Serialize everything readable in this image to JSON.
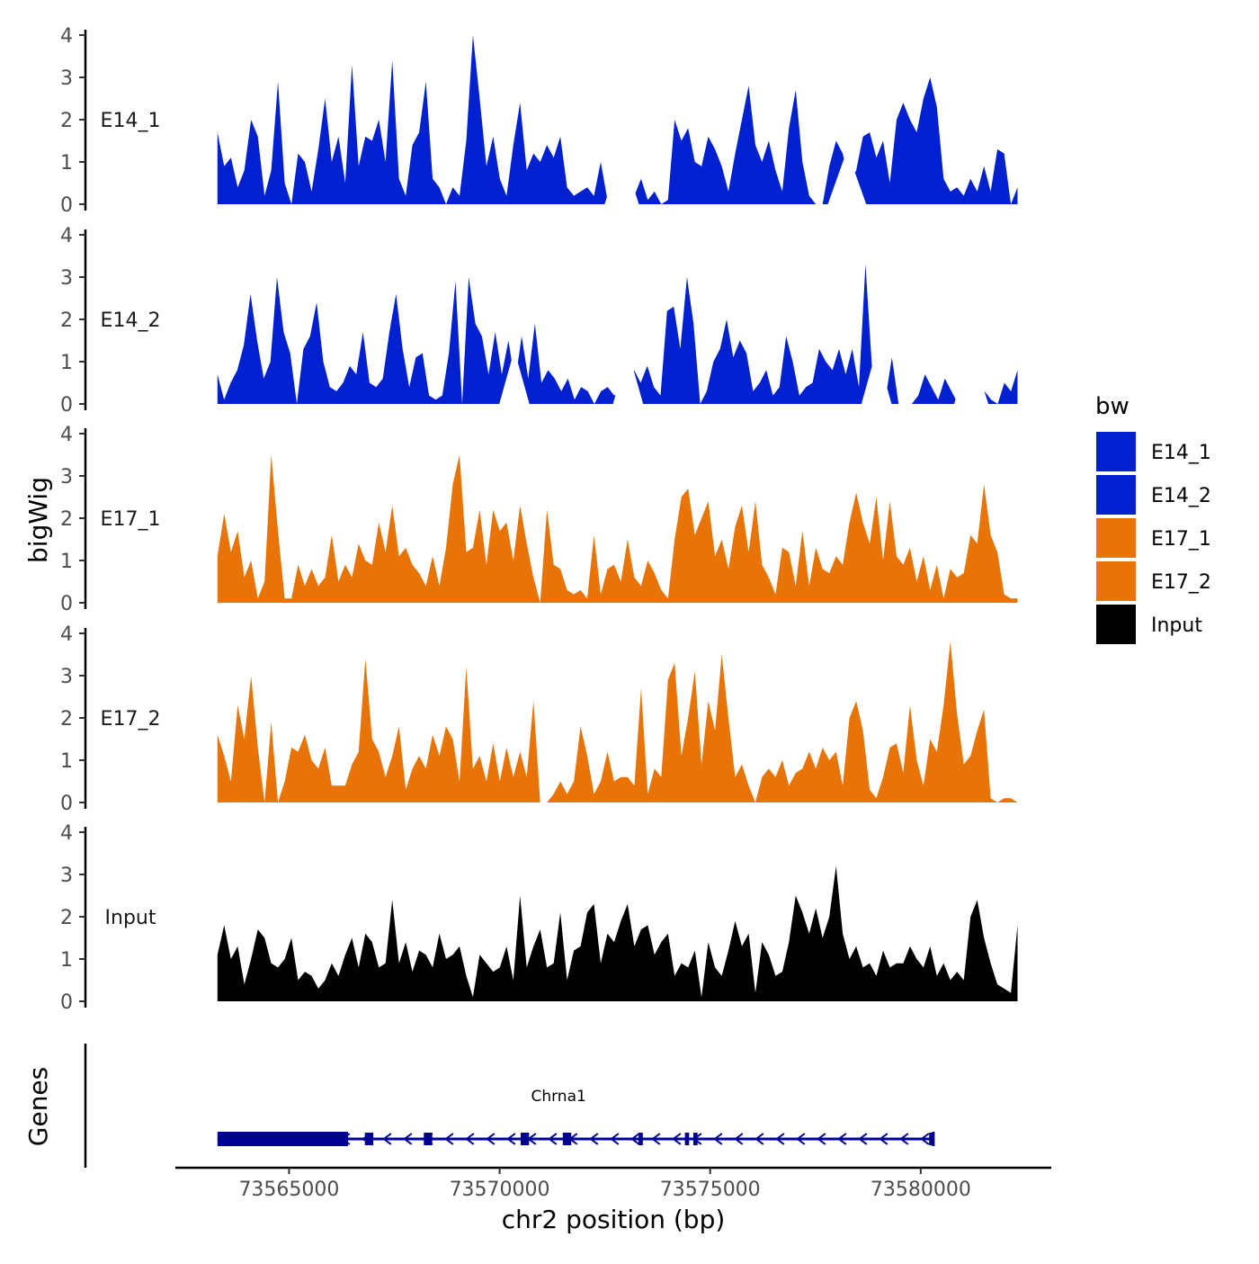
{
  "chart_data": {
    "type": "area",
    "ylabel": "bigWig",
    "xlabel": "chr2 position (bp)",
    "xlim": [
      73562300,
      73583100
    ],
    "ylim": [
      0,
      4
    ],
    "yticks": [
      0,
      1,
      2,
      3,
      4
    ],
    "xticks": [
      73565000,
      73570000,
      73575000,
      73580000
    ],
    "x_start": 73563300,
    "x_end": 73582300,
    "legend": {
      "title": "bw",
      "position": "right",
      "entries": [
        {
          "label": "E14_1",
          "color": "#0120d0"
        },
        {
          "label": "E14_2",
          "color": "#0120d0"
        },
        {
          "label": "E17_1",
          "color": "#e87408"
        },
        {
          "label": "E17_2",
          "color": "#e87408"
        },
        {
          "label": "Input",
          "color": "#000000"
        }
      ]
    },
    "tracks": [
      {
        "name": "E14_1",
        "color": "#0120d0",
        "values": [
          1.7,
          0.9,
          1.1,
          0.4,
          0.8,
          2.0,
          1.6,
          0.2,
          0.8,
          2.9,
          0.5,
          0.0,
          1.2,
          1.0,
          0.3,
          1.3,
          2.5,
          1.0,
          1.6,
          0.5,
          3.3,
          0.9,
          1.6,
          1.5,
          2.0,
          1.0,
          3.4,
          0.6,
          0.2,
          1.4,
          1.7,
          2.9,
          0.6,
          0.4,
          0.0,
          0.4,
          0.2,
          1.5,
          4.0,
          2.5,
          0.9,
          1.6,
          0.6,
          0.2,
          1.4,
          2.4,
          0.8,
          1.2,
          1.0,
          1.4,
          1.1,
          1.6,
          0.4,
          0.2,
          0.3,
          0.4,
          0.2,
          1.0,
          0.1,
          0.6,
          0.0,
          0.3,
          0.2,
          0.6,
          0.1,
          0.3,
          0.0,
          0.1,
          2.0,
          1.5,
          1.8,
          1.0,
          0.9,
          1.6,
          1.3,
          0.9,
          0.3,
          1.2,
          2.0,
          2.8,
          1.4,
          1.0,
          1.5,
          0.8,
          0.3,
          1.8,
          2.7,
          1.0,
          0.2,
          0.0,
          0.0,
          0.9,
          1.5,
          1.2,
          0.5,
          0.8,
          1.6,
          1.7,
          1.1,
          1.5,
          0.5,
          2.0,
          2.4,
          2.0,
          1.7,
          2.5,
          3.0,
          2.3,
          0.6,
          0.3,
          0.4,
          0.2,
          0.6,
          0.3,
          0.9,
          0.3,
          1.3,
          1.2,
          0.0,
          0.4
        ],
        "gaps": [
          [
            73572700,
            73573100
          ],
          [
            73578000,
            73578500
          ]
        ]
      },
      {
        "name": "E14_2",
        "color": "#0120d0",
        "values": [
          0.7,
          0.1,
          0.5,
          0.8,
          1.4,
          2.6,
          1.5,
          0.6,
          1.0,
          3.0,
          1.7,
          1.2,
          0.0,
          1.3,
          1.6,
          2.4,
          1.0,
          0.4,
          0.3,
          0.5,
          0.9,
          0.7,
          1.7,
          0.5,
          0.4,
          0.6,
          1.7,
          2.6,
          1.3,
          0.4,
          1.1,
          1.2,
          0.2,
          0.1,
          0.2,
          1.2,
          2.9,
          0.0,
          3.0,
          1.9,
          1.6,
          0.7,
          1.7,
          0.7,
          1.5,
          0.5,
          1.6,
          0.6,
          1.9,
          0.5,
          0.8,
          0.6,
          0.3,
          0.6,
          0.1,
          0.4,
          0.3,
          0.0,
          0.3,
          0.4,
          0.2,
          0.3,
          0.1,
          0.8,
          0.5,
          0.9,
          0.4,
          0.2,
          2.2,
          2.3,
          1.3,
          3.0,
          1.9,
          0.0,
          0.3,
          1.0,
          1.3,
          2.0,
          1.1,
          1.5,
          1.2,
          0.3,
          0.5,
          0.8,
          0.2,
          0.4,
          1.6,
          1.0,
          0.2,
          0.4,
          0.5,
          1.3,
          1.0,
          0.8,
          1.3,
          0.7,
          1.3,
          0.4,
          3.3,
          0.8,
          0.2,
          0.1,
          1.1,
          0.0,
          0.0,
          0.0,
          0.2,
          0.7,
          0.4,
          0.1,
          0.6,
          0.3,
          0.0,
          0.5,
          0.1,
          0.0,
          0.3,
          0.1,
          0.0,
          0.5,
          0.3,
          0.8
        ],
        "gaps": [
          [
            73570200,
            73570500
          ],
          [
            73572900,
            73573200
          ],
          [
            73578800,
            73579100
          ],
          [
            73581000,
            73581400
          ]
        ]
      },
      {
        "name": "E17_1",
        "color": "#e87408",
        "values": [
          1.1,
          2.1,
          1.2,
          1.7,
          0.6,
          1.0,
          0.1,
          0.5,
          3.5,
          1.7,
          0.1,
          0.1,
          0.9,
          0.4,
          0.8,
          0.4,
          0.6,
          1.6,
          0.5,
          0.9,
          0.6,
          1.4,
          1.0,
          0.9,
          1.9,
          1.2,
          2.3,
          1.1,
          1.3,
          0.9,
          0.7,
          0.4,
          1.1,
          0.4,
          1.3,
          2.8,
          3.5,
          1.2,
          1.3,
          2.2,
          0.9,
          2.2,
          1.7,
          1.9,
          1.0,
          2.3,
          1.4,
          0.6,
          0.0,
          2.2,
          0.9,
          0.8,
          0.3,
          0.2,
          0.3,
          0.1,
          1.6,
          0.2,
          0.8,
          0.9,
          0.5,
          1.5,
          0.6,
          0.4,
          1.0,
          0.7,
          0.3,
          0.1,
          1.5,
          2.5,
          2.7,
          1.6,
          2.0,
          2.4,
          1.1,
          1.5,
          0.8,
          1.8,
          2.3,
          1.2,
          2.4,
          0.9,
          0.6,
          0.2,
          1.3,
          1.2,
          0.4,
          1.7,
          0.4,
          1.3,
          0.8,
          0.7,
          1.1,
          0.9,
          1.9,
          2.6,
          1.9,
          1.4,
          2.5,
          1.0,
          2.4,
          1.1,
          0.9,
          1.3,
          0.5,
          1.1,
          0.3,
          0.9,
          0.1,
          0.8,
          0.6,
          0.7,
          1.6,
          1.4,
          2.8,
          1.6,
          1.2,
          0.2,
          0.1,
          0.1
        ],
        "gaps": []
      },
      {
        "name": "E17_2",
        "color": "#e87408",
        "values": [
          1.6,
          1.1,
          0.5,
          2.3,
          1.5,
          3.0,
          1.3,
          0.0,
          1.9,
          0.0,
          0.5,
          1.3,
          1.2,
          1.6,
          1.0,
          0.8,
          1.3,
          0.4,
          0.4,
          0.4,
          0.9,
          1.2,
          3.4,
          1.5,
          1.2,
          0.6,
          1.1,
          1.8,
          0.3,
          0.8,
          1.1,
          0.8,
          1.6,
          1.1,
          1.8,
          1.5,
          0.5,
          3.2,
          0.8,
          1.1,
          0.5,
          1.4,
          0.5,
          1.3,
          0.6,
          1.2,
          0.6,
          2.4,
          0.0,
          0.0,
          0.2,
          0.5,
          0.2,
          0.5,
          1.8,
          1.1,
          0.2,
          0.5,
          1.2,
          0.5,
          0.6,
          0.6,
          0.4,
          2.7,
          0.2,
          0.8,
          0.6,
          2.9,
          3.3,
          1.1,
          2.0,
          3.1,
          0.9,
          2.4,
          1.7,
          3.5,
          2.0,
          0.6,
          0.9,
          0.4,
          0.0,
          0.6,
          0.8,
          0.6,
          1.0,
          0.4,
          0.7,
          0.8,
          1.2,
          0.8,
          1.3,
          1.0,
          1.2,
          0.4,
          2.0,
          2.4,
          1.7,
          0.3,
          0.1,
          0.6,
          1.3,
          1.4,
          0.7,
          2.3,
          1.0,
          0.4,
          1.5,
          1.2,
          2.3,
          3.8,
          2.1,
          0.9,
          1.1,
          1.7,
          2.2,
          0.1,
          0.0,
          0.1,
          0.1,
          0.0
        ],
        "gaps": []
      },
      {
        "name": "Input",
        "color": "#000000",
        "values": [
          1.1,
          1.8,
          1.0,
          1.3,
          0.4,
          1.0,
          1.7,
          1.5,
          0.9,
          0.8,
          1.0,
          1.5,
          0.5,
          0.7,
          0.6,
          0.3,
          0.5,
          0.9,
          0.6,
          1.1,
          1.5,
          0.8,
          1.6,
          1.4,
          0.8,
          0.9,
          2.4,
          0.9,
          1.4,
          0.7,
          1.2,
          1.1,
          0.8,
          1.6,
          1.0,
          1.1,
          1.3,
          0.6,
          0.1,
          1.1,
          0.9,
          0.7,
          0.8,
          1.3,
          0.5,
          2.5,
          0.8,
          1.3,
          1.7,
          0.8,
          0.9,
          2.1,
          0.5,
          1.2,
          1.3,
          2.1,
          2.3,
          0.9,
          1.6,
          1.4,
          1.9,
          2.3,
          1.3,
          1.7,
          1.8,
          1.1,
          1.4,
          1.6,
          0.6,
          0.9,
          0.8,
          1.2,
          0.1,
          1.4,
          0.8,
          0.6,
          1.2,
          1.9,
          1.3,
          1.6,
          0.2,
          1.4,
          1.1,
          0.6,
          0.7,
          1.4,
          2.5,
          2.1,
          1.6,
          2.2,
          1.5,
          2.0,
          3.2,
          1.6,
          1.0,
          1.3,
          0.8,
          0.9,
          0.6,
          1.2,
          0.8,
          0.9,
          0.9,
          1.3,
          1.0,
          0.8,
          1.3,
          0.6,
          0.9,
          0.5,
          0.7,
          0.5,
          2.0,
          2.4,
          1.5,
          0.9,
          0.4,
          0.3,
          0.2,
          1.8
        ],
        "gaps": []
      }
    ],
    "genes": {
      "label": "Genes",
      "gene_name": "Chrna1",
      "color": "#000092",
      "start": 73563300,
      "end": 73580300,
      "strand": "-",
      "exons": [
        [
          73563300,
          73566400
        ],
        [
          73566800,
          73567000
        ],
        [
          73568200,
          73568400
        ],
        [
          73570500,
          73570700
        ],
        [
          73571500,
          73571700
        ],
        [
          73573300,
          73573400
        ],
        [
          73574400,
          73574500
        ],
        [
          73574600,
          73574700
        ],
        [
          73580200,
          73580300
        ]
      ]
    }
  }
}
